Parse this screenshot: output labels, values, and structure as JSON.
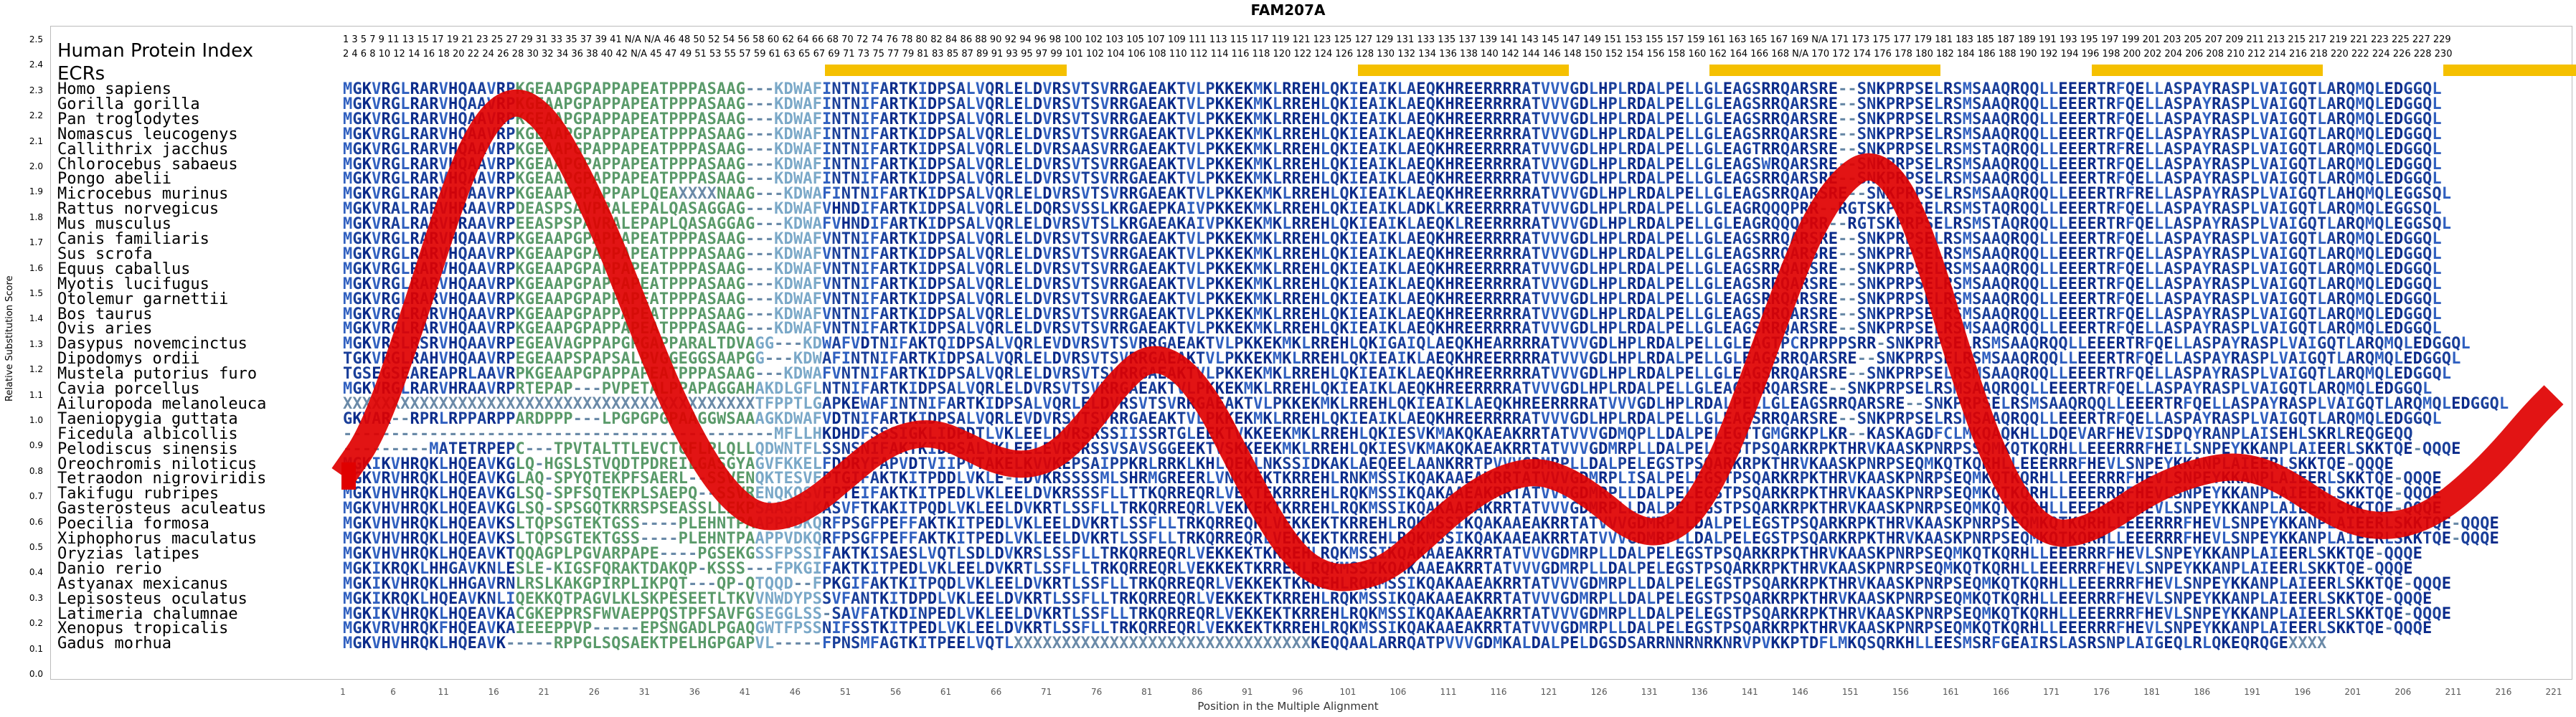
{
  "title": "FAM207A",
  "y_axis_label": "Relative Substitution Score",
  "x_axis_label": "Position in the Multiple Alignment",
  "header_labels": {
    "hpi": "Human Protein Index",
    "ecrs": "ECRs"
  },
  "index_row_1": "1  3  5  7  9  11  13  15  17  19  21  23  25  27  29  31  33  35  37  39  41  N/A N/A  46  48  50  52  54  56  58  60  62  64  66  68  70  72  74  76  78  80  82  84  86  88  90  92  94  96  98  100 102 103 105 107 109 111 113 115 117 119 121 123 125 127 129 131 133 135 137 139 141 143 145 147 149 151 153 155 157 159 161 163 165 167 169 N/A 171 173 175 177 179 181 183 185 187 189 191 193 195 197 199 201 203 205 207 209 211 213 215 217 219 221 223 225 227 229",
  "index_row_2": "2  4  6  8  10  12  14  16  18  20  22  24  26  28  30  32  34  36  38  40  42  N/A  45  47  49  51  53  55  57  59  61  63  65  67  69  71  73  75  77  79  81  83  85  87  89  91  93  95  97  99  101 102 104 106 108 110 112 114 116 118 120 122 124 126 128 130 132 134 136 138 140 142 144 146 148 150 152 154 156 158 160 162 164 166 168 N/A 170 172 174 176 178 180 182 184 186 188 190 192 194 196 198 200 202 204 206 208 210 212 214 216 218 220 222 224 226 228 230",
  "ecr_blocks": [
    {
      "start": 49,
      "end": 73
    },
    {
      "start": 102,
      "end": 123
    },
    {
      "start": 137,
      "end": 160
    },
    {
      "start": 175,
      "end": 198
    },
    {
      "start": 210,
      "end": 226
    }
  ],
  "y_ticks": [
    "2.5",
    "2.4",
    "2.3",
    "2.2",
    "2.1",
    "2.0",
    "1.9",
    "1.8",
    "1.7",
    "1.6",
    "1.5",
    "1.4",
    "1.3",
    "1.2",
    "1.1",
    "1.0",
    "0.9",
    "0.8",
    "0.7",
    "0.6",
    "0.5",
    "0.4",
    "0.3",
    "0.2",
    "0.1",
    "0.0"
  ],
  "x_ticks": [
    "1",
    "6",
    "11",
    "16",
    "21",
    "26",
    "31",
    "36",
    "41",
    "46",
    "51",
    "56",
    "61",
    "66",
    "71",
    "76",
    "81",
    "86",
    "91",
    "96",
    "101",
    "106",
    "111",
    "116",
    "121",
    "126",
    "131",
    "136",
    "141",
    "146",
    "151",
    "156",
    "161",
    "166",
    "171",
    "176",
    "181",
    "186",
    "191",
    "196",
    "201",
    "206",
    "211",
    "216",
    "221"
  ],
  "colors": {
    "ecr": "#f5c000",
    "wave": "#e00000",
    "seq_dark": "#0a2a8a",
    "seq_mid": "#3060c0",
    "seq_light": "#7aa8c8",
    "seq_green": "#5a9a6a"
  },
  "alignment": [
    {
      "species": "Homo sapiens",
      "seq": "MGKVRGLRARVHQAAVRPKGEAAPGPAPPAPEATPPPASAAG---KDWAFINTNIFARTKIDPSALVQRLELDVRSVTSVRRGAEAKTVLPKKEKMKLRREHLQKIEAIKLAEQKHREERRRRATVVVGDLHPLRDALPELLGLEAGSRRQARSRE--SNKPRPSELRSMSAAQRQQLLEEERTRFQELLASPAYRASPLVAIGQTLARQMQLEDGGQL"
    },
    {
      "species": "Gorilla gorilla",
      "seq": "MGKVRGLRARVHQAAVRPKGEAAPGPAPPAPEATPPPASAAG---KDWAFINTNIFARTKIDPSALVQRLELDVRSVTSVRRGAEAKTVLPKKEKMKLRREHLQKIEAIKLAEQKHREERRRRATVVVGDLHPLRDALPELLGLEAGSRRQARSRE--SNKPRPSELRSMSAAQRQQLLEEERTRFQELLASPAYRASPLVAIGQTLARQMQLEDGGQL"
    },
    {
      "species": "Pan troglodytes",
      "seq": "MGKVRGLRARVHQAAVRPKGEAAPGPAPPAPEATPPPASAAG---KDWAFINTNIFARTKIDPSALVQRLELDVRSVTSVRRGAEAKTVLPKKEKMKLRREHLQKIEAIKLAEQKHREERRRRATVVVGDLHPLRDALPELLGLEAGSRRQARSRE--SNKPRPSELRSMSAAQRQQLLEEERTRFQELLASPAYRASPLVAIGQTLARQMQLEDGGQL"
    },
    {
      "species": "Nomascus leucogenys",
      "seq": "MGKVRGLRARVHQAAVRPKGEAAPGPAPPAPEATPPPASAAG---KDWAFINTNIFARTKIDPSALVQRLELDVRSVTSVRRGAEAKTVLPKKEKMKLRREHLQKIEAIKLAEQKHREERRRRATVVVGDLHPLRDALPELLGLEAGSRRQARSRE--SNKPRPSELRSMSAAQRQQLLEEERTRFQELLASPAYRASPLVAIGQTLARQMQLEDGGQL"
    },
    {
      "species": "Callithrix jacchus",
      "seq": "MGKVRGLRARVHQAAVRPKGEAAPGPAPPAPEATPPPASAAG---KDWAFINTNIFARTKIDPSALVQRLELDVRSAASVRRGAEAKTVLPKKEKMKLRREHLQKIEAIKLAEQKHREERRRRATVVVGDLHPLRDALPELLGLEAGTRRQARSRE--SNKPRPSELRSMSTAQRQQLLEEERTRFRELLASPAYRASPLVAIGQTLARQMQLEDGGQL"
    },
    {
      "species": "Chlorocebus sabaeus",
      "seq": "MGKVRGLRARVHQAAVRPKGEAAPGPAPPAPEATPPPASAAG---KDWAFINTNIFARTKIDPSALVQRLELDVRSVTSVRRGAEAKTVLPKKEKMKLRREHLQKIEAIKLAEQKHREERRRRATVVVGDLHPLRDALPELLGLEAGSWRQARSRE--SNKPRPSELRSMSAAQRQQLLEEERTRFQELLASPAYRASPLVAIGQTLARQMQLEDGGQL"
    },
    {
      "species": "Pongo abelii",
      "seq": "MGKVRGLRARVHQAAVRPKGEAAPGPAPPAPEATPPPASAAG---KDWAFINTNIFARTKIDPSALVQRLELDVRSVTSVRRGAEAKTVLPKKEKMKLRREHLQKIEAIKLAEQKHREERRRRATVVVGDLHPLRDALPELLGLEAGSRRQARSRE--SNKPRPSELRSMSAAQRQQLLEEERTRFQELLASPAYRASPLVAIGQTLARQMQLEDGGQL"
    },
    {
      "species": "Microcebus murinus",
      "seq": "MGKVRGLRARVHQAAVRPKGEAAPGPAPPAPLQEAXXXXNAAG---KDWAFINTNIFARTKIDPSALVQRLELDVRSVTSVRRGAEAKTVLPKKEKMKLRREHLQKIEAIKLAEQKHREERRRRATVVVGDLHPLRDALPELLGLEAGSRRQARSRE--SNKPRPSELRSMSAAQRQQLLEEERTRFRELLASPAYRASPLVAIGQTLAHQMQLEGGSQL"
    },
    {
      "species": "Rattus norvegicus",
      "seq": "MGKVRALRARVHRAAVRPDEASPSAVPRALEPALQASAGGAG---KDWAFVHNDIFARTKIDPSALVQRLELDQRSVSSLKRGAEPKAIVPKKEKMKLRREHLQKIEAIKLADKLKREERRRRATVVVGDLHPLRDALPELLGLEAGRQQQPRR--RGTSKPRPSELRSMSTAQRQQLLEEERTRFQELLASPAYRASPLVAIGQTLARQMQLEGGSQL"
    },
    {
      "species": "Mus musculus",
      "seq": "MGKVRALRARVHRAAVRPEEASPSPAVRALEPAPLQASAGGAG---KDWAFVHNDIFARTKIDPSALVQRLELDVRSVTSLKRGAEAKAIVPKKEKMKLRREHLQKIEAIKLAEQKLREERRRRATVVVGDLHPLRDALPELLGLEAGRQQQPRR--RGTSKPRPSELRSMSTAQRQQLLEEERTRFQELLASPAYRASPLVAIGQTLARQMQLEGGSQL"
    },
    {
      "species": "Canis familiaris",
      "seq": "MGKVRGLRARVHQAAVRPKGEAAPGPAPPAPEATPPPASAAG---KDWAFVNTNIFARTKIDPSALVQRLELDVRSVTSVRRGAEAKTVLPKKEKMKLRREHLQKIEAIKLAEQKHREERRRRATVVVGDLHPLRDALPELLGLEAGSRRQARSRE--SNKPRPSELRSMSAAQRQQLLEEERTRFQELLASPAYRASPLVAIGQTLARQMQLEDGGQL"
    },
    {
      "species": "Sus scrofa",
      "seq": "MGKVRGLRARVHQAAVRPKGEAAPGPAPPAPEATPPPASAAG---KDWAFVNTNIFARTKIDPSALVQRLELDVRSVTSVRRGAEAKTVLPKKEKMKLRREHLQKIEAIKLAEQKHREERRRRATVVVGDLHPLRDALPELLGLEAGSRRQARSRE--SNKPRPSELRSMSAAQRQQLLEEERTRFQELLASPAYRASPLVAIGQTLARQMQLEDGGQL"
    },
    {
      "species": "Equus caballus",
      "seq": "MGKVRGLRARVHQAAVRPKGEAAPGPAPPAPEATPPPASAAG---KDWAFVNTNIFARTKIDPSALVQRLELDVRSVTSVRRGAEAKTVLPKKEKMKLRREHLQKIEAIKLAEQKHREERRRRATVVVGDLHPLRDALPELLGLEAGSRRQARSRE--SNKPRPSELRSMSAAQRQQLLEEERTRFQELLASPAYRASPLVAIGQTLARQMQLEDGGQL"
    },
    {
      "species": "Myotis lucifugus",
      "seq": "MGKVRGLRARVHQAAVRPKGEAAPGPAPPAPEATPPPASAAG---KDWAFVNTNIFARTKIDPSALVQRLELDVRSVTSVRRGAEAKTVLPKKEKMKLRREHLQKIEAIKLAEQKHREERRRRATVVVGDLHPLRDALPELLGLEAGSRRQARSRE--SNKPRPSELRSMSAAQRQQLLEEERTRFQELLASPAYRASPLVAIGQTLARQMQLEDGGQL"
    },
    {
      "species": "Otolemur garnettii",
      "seq": "MGKVRGLRARVHQAAVRPKGEAAPGPAPPAPEATPPPASAAG---KDWAFVNTNIFARTKIDPSALVQRLELDVRSVTSVRRGAEAKTVLPKKEKMKLRREHLQKIEAIKLAEQKHREERRRRATVVVGDLHPLRDALPELLGLEAGSRRQARSRE--SNKPRPSELRSMSAAQRQQLLEEERTRFQELLASPAYRASPLVAIGQTLARQMQLEDGGQL"
    },
    {
      "species": "Bos taurus",
      "seq": "MGKVRGLRARVHQAAVRPKGEAAPGPAPPAPEATPPPASAAG---KDWAFVNTNIFARTKIDPSALVQRLELDVRSVTSVRRGAEAKTVLPKKEKMKLRREHLQKIEAIKLAEQKHREERRRRATVVVGDLHPLRDALPELLGLEAGSRRQARSRE--SNKPRPSELRSMSAAQRQQLLEEERTRFQELLASPAYRASPLVAIGQTLARQMQLEDGGQL"
    },
    {
      "species": "Ovis aries",
      "seq": "MGKVRGLRARVHQAAVRPKGEAAPGPAPPAPEATPPPASAAG---KDWAFVNTNIFARTKIDPSALVQRLELDVRSVTSVRRGAEAKTVLPKKEKMKLRREHLQKIEAIKLAEQKHREERRRRATVVVGDLHPLRDALPELLGLEAGSRRQARSRE--SNKPRPSELRSMSAAQRQQLLEEERTRFQELLASPAYRASPLVAIGQTLARQMQLEDGGQL"
    },
    {
      "species": "Dasypus novemcinctus",
      "seq": "MGKVRSLRSRVHQAAVRPEGEAVAGPPAPGPGAPPARALTDVAGG---KDWAFVDTNIFAKTQIDPSALVQRLEVDVRSVTSVRRGAEAKTVLPKKEKMKLRREHLQKIGAIQLAEQKHEARRRRATVVVGDLHPLRDALPELLGLEAGTPCRPRPPSRR-SNKPRPSELRSMSAAQRQQLLEEERTRFQELLASPAYRASPLVAIGQTLARQMQLEDGGQL"
    },
    {
      "species": "Dipodomys ordii",
      "seq": "TGKVRGLRAHVHQAAVRPEGEAAPSPAPSALPVGGEGGSAAPGG---KDWAFINTNIFARTKIDPSALVQRLELDVRSVTSVRRGAEAKTVLPKKEKMKLRREHLQKIEAIKLAEQKHREERRRRATVVVGDLHPLRDALPELLGLEAGSRRQARSRE--SNKPRPSELRSMSAAQRQQLLEEERTRFQELLASPAYRASPLVAIGQTLARQMQLEDGGQL"
    },
    {
      "species": "Mustela putorius furo",
      "seq": "TGSEGSEAREAPRLAAVRPKGEAAPGPAPPAPEATPPPASAAG---KDWAFVNTNIFARTKIDPSALVQRLELDVRSVTSVRRGAEAKTVLPKKEKMKLRREHLQKIEAIKLAEQKHREERRRRATVVVGDLHPLRDALPELLGLEAGSRRQARSRE--SNKPRPSELRSMSAAQRQQLLEEERTRFQELLASPAYRASPLVAIGQTLARQMQLEDGGQL"
    },
    {
      "species": "Cavia porcellus",
      "seq": "MGKVRGLRARVHRAAVRPRTEPAP---PVPETALPPAPAGGAHAKDLGFLNTNIFARTKIDPSALVQRLELDVRSVTSVRRGAEAKTVLPKKEKMKLRREHLQKIEAIKLAEQKHREERRRRATVVVGDLHPLRDALPELLGLEAGSRRQARSRE--SNKPRPSELRSMSAAQRQQLLEEERTRFQELLASPAYRASPLVAIGQTLARQMQLEDGGQL"
    },
    {
      "species": "Ailuropoda melanoleuca",
      "seq": "XXXXXXXXXXXXXXXXXXXXXXXXXXXXXXXXXXXXXXXXXXXTFPPTLGAPKEWAFINTNIFARTKIDPSALVQRLELDVRSVTSVRRGAEAKTVLPKKEKMKLRREHLQKIEAIKLAEQKHREERRRRATVVVGDLHPLRDALPELLGLEAGSRRQARSRE--SNKPRPSELRSMSAAQRQQLLEEERTRFQELLASPAYRASPLVAIGQTLARQMQLEDGGQL"
    },
    {
      "species": "Taeniopygia guttata",
      "seq": "GKVAR--RPRLRPPARPPARDPPP---LPGPGPGPAAGGWSAAAGKDWAFVDTNIFARTKIDPSALVQRLEVDVRSVTSVRRGAEAKTVLPKKEKMKLRREHLQKIEAIKLAEQKHREERRRRATVVVGDLHPLRDALPELLGLEAGSRRQARSRE--SNKPRPSELRSMSAAQRQQLLEEERTRFQELLASPAYRASPLVAIGQTLARQMQLEDGGQL"
    },
    {
      "species": "Ficedula albicollis",
      "seq": "---------------------------------------------MFLLHKDHDFSSSIGKLIDPDTLVKLEELDVRSRSSIISSRTGLEEKTVKKEEKMKLRREHLQKIESVKMAKQKAEAKRRTATVVVGDMQPLLDALPELEGTTGMGRKPLKR--KASKAGDFCLMKQAQKHLLDQEVARFHEVISDPQYRANPLAISEHLSKRLREQGEQQ"
    },
    {
      "species": "Pelodiscus sinensis",
      "seq": "---------MATETRPEPC---TPVTALTTLEVCTGFLPLQLLQDWNTFLSSNSNIFAKTKIDPSALVKLEELEVRSRSSVSAVSGGEEKTVSKKEEKMKLRREHLQKIESVKMAKQKAEAKRRTATVVVGDMRPLLDALPELEGSTPSQARKRPKTHRVKAASKPNRPSSQMKQTKQRHLLEEERRRFHEILSNPEYKKANPLAIEERLSKKTQE-QQQE"
    },
    {
      "species": "Oreochromis niloticus",
      "seq": "MGKIKVHRQKLHQEAVKGLQ-HGSLSTVQDTPDREILGASGYAGVFKKELFDDRYFAPVDTVIIPVTAKELKVVKEPSAIPPKRLRRKLKHLQEKLNKSSIDKAKLAEQEELAANKRRTPVVVGDMRPLLDALPELEGSTPSQARKRPKTHRVKAASKPNRPSEQMKQTKQRHLLEEERRRFHEVLSNPEYKKANPLAIEERLSKKTQE-QQQE"
    },
    {
      "species": "Tetraodon nigroviridis",
      "seq": "MGKVRVHRQKLHQEAVKGLAQ-SPYQTEKPFSAERL--SSVENQKTESVFPTGIFAKTKITPDDLVKLE-LDVKRSSSSMLSHRMGREERLVNKKEKTKRREHLRNKMSSIKQAKAAEAKRRTATVVVGDMRPLISALPELEGSTPSQARKRPKTHRVKAASKPNRPSEQMKQTKQRHLLEEERRRFHEVLSNPEYKKANPLAIEERLSKKTQE-QQQE"
    },
    {
      "species": "Takifugu rubripes",
      "seq": "MGKVHVHRQKLHQEAVKGLSQ-SPFSQTEKPLSAEPQ--SSVRENQKQSVFPTEIFAKTKITPEDLVKLEELDVKRSSSFLLTTKQRREQRLVEKTEKRRREHLRQKMSSIKQAKAAEAKRRTATVVVGDMRPLLDALPELEGSTPSQARKRPKTHRVKAASKPNRPSEQMKQTKQRHLLEEERRRFHEVLSNPEYKKANPLAIEERLSKKTQE-QQQE"
    },
    {
      "species": "Gasterosteus aculeatus",
      "seq": "MGKVHVHRQKLHQEAVKGLSQ-SPSGQTKRRSPSEASSLLEKPSAASFLKASVFTKAKITPQDLVKLEELDVKRTLSSFLLTRKQRREQRLVEKKEKTKRREHLRQKMSSIKQAKAAEAKRRTATVVVGDMRPLLDALPELEGSTPSQARKRPKTHRVKAASKPNRPSEQMKQTKQRHLLEEERRRFHEVLSNPEYKKANPLAIEERLSKKTQE-QQQE"
    },
    {
      "species": "Poecilia formosa",
      "seq": "MGKVHVHRQKLHQEAVKSLTQPSGTEKTGSS----PLEHNTPAAPPVDKQRFPSGFPEFFAKTKITPEDLVKLEELDVKRTLSSFLLTRKQRREQRLVEKKEKTKRREHLRQKMSSIKQAKAAEAKRRTATVVVGDMRPLLDALPELEGSTPSQARKRPKTHRVKAASKPNRPSEQMKQTKQRHLLEEERRRFHEVLSNPEYKKANPLAIEERLSKKTQE-QQQE"
    },
    {
      "species": "Xiphophorus maculatus",
      "seq": "MGKVHVHRQKLHQEAVKSLTQPSGTEKTGSS----PLEHNTPAAPPVDKQRFPSGFPEFFAKTKITPEDLVKLEELDVKRTLSSFLLTRKQRREQRLVEKKEKTKRREHLRQKMSSIKQAKAAEAKRRTATVVVGDMRPLLDALPELEGSTPSQARKRPKTHRVKAASKPNRPSEQMKQTKQRHLLEEERRRFHEVLSNPEYKKANPLAIEERLSKKTQE-QQQE"
    },
    {
      "species": "Oryzias latipes",
      "seq": "MGKVHVHRQKLHQEAVKTQQAGPLPGVARPAPE----PGSEKGSSFPSSIFAKTKISAESLVQTLSDLDVKRSLSSFLLTRKQRREQRLVEKKEKTKRREHLRQKMSSIKQAKAAEAKRRTATVVVGDMRPLLDALPELEGSTPSQARKRPKTHRVKAASKPNRPSEQMKQTKQRHLLEEERRRFHEVLSNPEYKKANPLAIEERLSKKTQE-QQQE"
    },
    {
      "species": "Danio rerio",
      "seq": "MGKIKRQKLHHGAVKNLESLE-KIGSFQRAKTDAKQP-KSSS---FPKGIFAKTKITPEDLVKLEELDVKRTLSSFLLTRKQRREQRLVEKKEKTKRREHLRQKMSSIKQAKAAEAKRRTATVVVGDMRPLLDALPELEGSTPSQARKRPKTHRVKAASKPNRPSEQMKQTKQRHLLEEERRRFHEVLSNPEYKKANPLAIEERLSKKTQE-QQQE"
    },
    {
      "species": "Astyanax mexicanus",
      "seq": "MGKIKVHRQKLHHGAVRNLRSLKAKGPIRPLIKPQT---QP-QTQQD--FPKGIFAKTKITPQDLVKLEELDVKRTLSSFLLTRKQRREQRLVEKKEKTKRREHLRQKMSSIKQAKAAEAKRRTATVVVGDMRPLLDALPELEGSTPSQARKRPKTHRVKAASKPNRPSEQMKQTKQRHLLEEERRRFHEVLSNPEYKKANPLAIEERLSKKTQE-QQQE"
    },
    {
      "species": "Lepisosteus oculatus",
      "seq": "MGKIKRQKLHQEAVKNLIQEKKQTPAGVLKLSKPESEETLTKVVNWDYPSSVFANTKITDPDLVKLEELDVKRTLSSFLLTRKQRREQRLVEKKEKTKRREHLRQKMSSIKQAKAAEAKRRTATVVVGDMRPLLDALPELEGSTPSQARKRPKTHRVKAASKPNRPSEQMKQTKQRHLLEEERRRFHEVLSNPEYKKANPLAIEERLSKKTQE-QQQE"
    },
    {
      "species": "Latimeria chalumnae",
      "seq": "MGKIKVHRQKLHQEAVKACGKEPPRSFWVAEPPQSTPFSAVFGSEGGLSS-SAVFATKDINPEDLVKLEELDVKRTLSSFLLTRKQRREQRLVEKKEKTKRREHLRQKMSSIKQAKAAEAKRRTATVVVGDMRPLLDALPELEGSTPSQARKRPKTHRVKAASKPNRPSEQMKQTKQRHLLEEERRRFHEVLSNPEYKKANPLAIEERLSKKTQE-QQQE"
    },
    {
      "species": "Xenopus tropicalis",
      "seq": "MGKVRVHRQKFHQEAVKAIEEEPPVP-----EPSNGADLPGAQGWTFPSSNIFSSTKITPEDLVKLEELDVKRTLSSFLLTRKQRREQRLVEKKEKTKRREHLRQKMSSIKQAKAAEAKRRTATVVVGDMRPLLDALPELEGSTPSQARKRPKTHRVKAASKPNRPSEQMKQTKQRHLLEEERRRFHEVLSNPEYKKANPLAIEERLSKKTQE-QQQE"
    },
    {
      "species": "Gadus morhua",
      "seq": "MGKVHVHRQKLHQEAVK-----RPPGLSQSAEKTPELHGPGAPVL-----FPNSMFAGTKITPEELVQTLXXXXXXXXXXXXXXXXXXXXXXXXXXXXXXXKEQQAALARRQATPVVVGDMKALDALPELDGSDSARRNNRNRKNRVPVKKPTDFLMKQSQRKHLLEESMSRFGEAIRSLASRSNPLAIGEQLRLQKEQRQGEXXXX"
    }
  ],
  "wave": [
    [
      1,
      0.78
    ],
    [
      4,
      0.95
    ],
    [
      8,
      1.4
    ],
    [
      12,
      1.9
    ],
    [
      15,
      2.17
    ],
    [
      18,
      2.27
    ],
    [
      21,
      2.2
    ],
    [
      24,
      2.0
    ],
    [
      27,
      1.75
    ],
    [
      30,
      1.45
    ],
    [
      33,
      1.15
    ],
    [
      36,
      0.9
    ],
    [
      39,
      0.72
    ],
    [
      42,
      0.62
    ],
    [
      45,
      0.62
    ],
    [
      48,
      0.68
    ],
    [
      51,
      0.78
    ],
    [
      54,
      0.88
    ],
    [
      57,
      0.94
    ],
    [
      60,
      0.95
    ],
    [
      63,
      0.9
    ],
    [
      66,
      0.84
    ],
    [
      69,
      0.82
    ],
    [
      72,
      0.86
    ],
    [
      75,
      0.98
    ],
    [
      78,
      1.14
    ],
    [
      81,
      1.25
    ],
    [
      84,
      1.22
    ],
    [
      87,
      1.08
    ],
    [
      90,
      0.85
    ],
    [
      93,
      0.62
    ],
    [
      96,
      0.45
    ],
    [
      99,
      0.38
    ],
    [
      102,
      0.38
    ],
    [
      105,
      0.42
    ],
    [
      108,
      0.52
    ],
    [
      111,
      0.63
    ],
    [
      114,
      0.72
    ],
    [
      117,
      0.78
    ],
    [
      120,
      0.8
    ],
    [
      123,
      0.76
    ],
    [
      126,
      0.68
    ],
    [
      129,
      0.58
    ],
    [
      132,
      0.55
    ],
    [
      135,
      0.62
    ],
    [
      138,
      0.82
    ],
    [
      141,
      1.12
    ],
    [
      144,
      1.45
    ],
    [
      147,
      1.75
    ],
    [
      150,
      1.94
    ],
    [
      153,
      2.02
    ],
    [
      156,
      1.92
    ],
    [
      159,
      1.62
    ],
    [
      162,
      1.22
    ],
    [
      165,
      0.88
    ],
    [
      168,
      0.65
    ],
    [
      171,
      0.55
    ],
    [
      174,
      0.56
    ],
    [
      177,
      0.62
    ],
    [
      180,
      0.7
    ],
    [
      183,
      0.76
    ],
    [
      186,
      0.8
    ],
    [
      189,
      0.82
    ],
    [
      192,
      0.8
    ],
    [
      195,
      0.74
    ],
    [
      198,
      0.66
    ],
    [
      201,
      0.6
    ],
    [
      204,
      0.58
    ],
    [
      207,
      0.6
    ],
    [
      210,
      0.66
    ],
    [
      213,
      0.76
    ],
    [
      216,
      0.88
    ],
    [
      219,
      1.02
    ],
    [
      221,
      1.1
    ]
  ]
}
